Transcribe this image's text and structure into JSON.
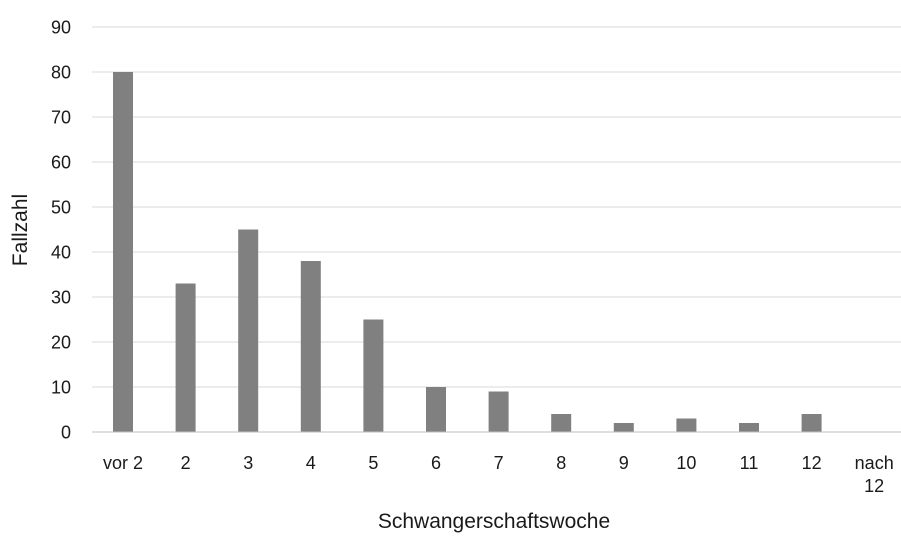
{
  "chart_data": {
    "type": "bar",
    "categories": [
      [
        "vor 2"
      ],
      [
        "2"
      ],
      [
        "3"
      ],
      [
        "4"
      ],
      [
        "5"
      ],
      [
        "6"
      ],
      [
        "7"
      ],
      [
        "8"
      ],
      [
        "9"
      ],
      [
        "10"
      ],
      [
        "11"
      ],
      [
        "12"
      ],
      [
        "nach",
        "12"
      ]
    ],
    "values": [
      80,
      33,
      45,
      38,
      25,
      10,
      9,
      4,
      2,
      3,
      2,
      4,
      0
    ],
    "xlabel": "Schwangerschaftswoche",
    "ylabel": "Fallzahl",
    "ylim": [
      0,
      90
    ],
    "yticks": [
      0,
      10,
      20,
      30,
      40,
      50,
      60,
      70,
      80,
      90
    ],
    "grid": true,
    "bar_color": "#808080",
    "grid_color": "#d9d9d9",
    "axis_color": "#bfbfbf"
  }
}
